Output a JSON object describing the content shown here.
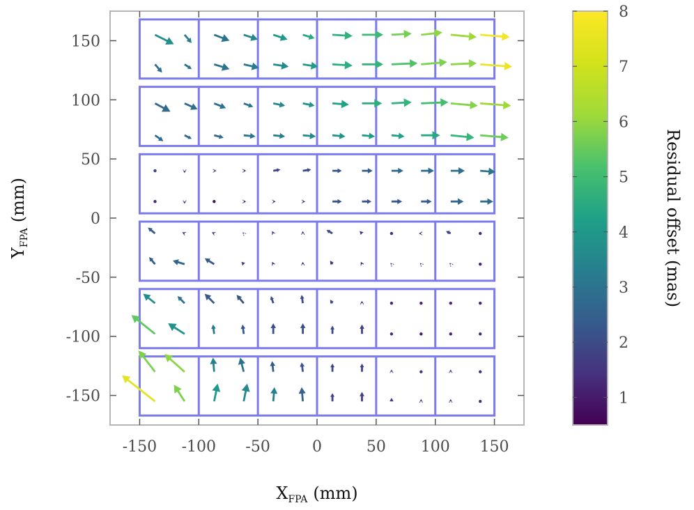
{
  "chart_data": {
    "type": "quiver",
    "title": "",
    "xlabel": {
      "main": "X",
      "sub": "FPA",
      "unit": "(mm)"
    },
    "ylabel": {
      "main": "Y",
      "sub": "FPA",
      "unit": "(mm)"
    },
    "xlim": [
      -175,
      175
    ],
    "ylim": [
      -175,
      175
    ],
    "xticks": [
      -150,
      -100,
      -50,
      0,
      50,
      100,
      150
    ],
    "yticks": [
      -150,
      -100,
      -50,
      0,
      50,
      100,
      150
    ],
    "xtick_labels": [
      "-150",
      "-100",
      "-50",
      "0",
      "50",
      "100",
      "150"
    ],
    "ytick_labels": [
      "-150",
      "-100",
      "-50",
      "0",
      "50",
      "100",
      "150"
    ],
    "colorbar": {
      "label": "Residual offset (mas)",
      "min": 0.5,
      "max": 8,
      "ticks": [
        1,
        2,
        3,
        4,
        5,
        6,
        7,
        8
      ],
      "tick_labels": [
        "1",
        "2",
        "3",
        "4",
        "5",
        "6",
        "7",
        "8"
      ],
      "colormap": "viridis"
    },
    "ccd_chips": [
      {
        "xmin": -150,
        "xmax": 150,
        "ymin": 118,
        "ymax": 168
      },
      {
        "xmin": -150,
        "xmax": 150,
        "ymin": 61,
        "ymax": 111
      },
      {
        "xmin": -150,
        "xmax": 150,
        "ymin": 4,
        "ymax": 54
      },
      {
        "xmin": -150,
        "xmax": 150,
        "ymin": -53,
        "ymax": -3
      },
      {
        "xmin": -150,
        "xmax": 150,
        "ymin": -110,
        "ymax": -60
      },
      {
        "xmin": -150,
        "xmax": 150,
        "ymin": -167,
        "ymax": -117
      }
    ],
    "chip_column_dividers": [
      -100,
      -50,
      0,
      50,
      100
    ],
    "grid_x": [
      -137,
      -112,
      -87,
      -62,
      -37,
      -12,
      13,
      38,
      63,
      88,
      113,
      138
    ],
    "grid_y": [
      155,
      130,
      97,
      70,
      40,
      14,
      -13,
      -39,
      -72,
      -98,
      -130,
      -155
    ],
    "vectors_dx": [
      [
        16,
        6,
        13,
        12,
        12,
        10,
        17,
        18,
        17,
        18,
        22,
        25
      ],
      [
        6,
        6,
        13,
        13,
        13,
        13,
        17,
        18,
        22,
        22,
        22,
        27
      ],
      [
        13,
        11,
        10,
        8,
        10,
        10,
        14,
        17,
        17,
        23,
        23,
        26
      ],
      [
        7,
        6,
        8,
        10,
        10,
        11,
        11,
        11,
        11,
        16,
        20,
        24
      ],
      [
        0,
        0,
        2,
        2,
        6,
        7,
        8,
        9,
        10,
        11,
        12,
        13
      ],
      [
        0,
        0,
        0,
        2,
        2,
        2,
        8,
        8,
        9,
        9,
        11,
        11
      ],
      [
        -6,
        -2,
        -2,
        -1,
        -1,
        0,
        -5,
        -2,
        -1,
        -2,
        -4,
        0
      ],
      [
        -5,
        -10,
        -8,
        -2,
        -1,
        0,
        -2,
        -1,
        -1,
        -1,
        -1,
        0
      ],
      [
        -10,
        -6,
        -8,
        -6,
        -2,
        -1,
        -2,
        0,
        0,
        0,
        0,
        0
      ],
      [
        -20,
        -14,
        -1,
        -1,
        0,
        0,
        0,
        0,
        0,
        0,
        0,
        0
      ],
      [
        -14,
        -17,
        -1,
        -3,
        -1,
        -1,
        0,
        0,
        0,
        0,
        0,
        0
      ],
      [
        -28,
        -9,
        3,
        3,
        1,
        -1,
        0,
        0,
        0,
        0,
        0,
        0
      ]
    ],
    "vectors_dy": [
      [
        -8,
        -7,
        -5,
        -4,
        -4,
        -3,
        -1,
        0,
        1,
        2,
        -2,
        -2
      ],
      [
        -7,
        -4,
        -4,
        -3,
        -2,
        -2,
        -1,
        0,
        1,
        2,
        1,
        -2
      ],
      [
        -7,
        -5,
        -4,
        -3,
        -2,
        -2,
        -1,
        0,
        1,
        1,
        -2,
        -2
      ],
      [
        -5,
        -3,
        -2,
        -1,
        -1,
        -1,
        -1,
        -1,
        -1,
        0,
        -2,
        -2
      ],
      [
        0,
        -2,
        0,
        0,
        1,
        1,
        0,
        0,
        0,
        0,
        0,
        -1
      ],
      [
        0,
        -2,
        0,
        0,
        0,
        0,
        0,
        0,
        0,
        0,
        0,
        0
      ],
      [
        5,
        1,
        1,
        1,
        2,
        2,
        3,
        2,
        0,
        0,
        2,
        1
      ],
      [
        6,
        3,
        5,
        2,
        2,
        2,
        3,
        2,
        1,
        1,
        1,
        1
      ],
      [
        8,
        6,
        8,
        7,
        6,
        7,
        3,
        2,
        1,
        0,
        0,
        1
      ],
      [
        16,
        9,
        8,
        8,
        9,
        9,
        7,
        8,
        1,
        0,
        1,
        1
      ],
      [
        18,
        15,
        12,
        12,
        9,
        8,
        7,
        7,
        2,
        1,
        2,
        1
      ],
      [
        22,
        14,
        15,
        15,
        12,
        12,
        7,
        8,
        3,
        2,
        2,
        1
      ]
    ],
    "vectors_mag": [
      [
        4.2,
        3.6,
        3.4,
        4.0,
        4.5,
        5.0,
        5.3,
        5.6,
        6.4,
        6.7,
        6.9,
        7.9
      ],
      [
        3.2,
        3.3,
        3.4,
        3.6,
        4.1,
        4.6,
        5.2,
        5.4,
        5.9,
        6.5,
        6.7,
        7.8
      ],
      [
        3.1,
        3.2,
        3.3,
        3.4,
        4.0,
        4.4,
        4.8,
        5.2,
        5.4,
        5.7,
        6.6,
        6.9
      ],
      [
        3.0,
        3.0,
        3.1,
        3.4,
        3.7,
        4.1,
        4.4,
        4.6,
        4.7,
        5.0,
        5.5,
        6.3
      ],
      [
        2.0,
        2.1,
        1.7,
        1.7,
        2.0,
        2.2,
        2.5,
        2.6,
        3.0,
        3.0,
        3.2,
        3.4
      ],
      [
        1.3,
        1.6,
        0.8,
        1.3,
        1.4,
        1.4,
        2.4,
        2.5,
        2.6,
        2.7,
        3.0,
        3.1
      ],
      [
        2.6,
        1.6,
        1.6,
        1.6,
        1.6,
        1.4,
        2.2,
        1.5,
        1.5,
        1.5,
        2.0,
        1.4
      ],
      [
        2.7,
        2.9,
        2.6,
        1.7,
        1.6,
        1.4,
        1.6,
        1.4,
        1.3,
        1.3,
        1.3,
        1.3
      ],
      [
        4.2,
        3.4,
        2.6,
        2.4,
        2.3,
        2.2,
        2.1,
        1.4,
        1.3,
        1.2,
        1.3,
        1.3
      ],
      [
        6.1,
        4.3,
        3.5,
        2.6,
        2.3,
        2.3,
        2.1,
        2.0,
        1.4,
        1.0,
        1.2,
        1.4
      ],
      [
        6.5,
        6.7,
        3.8,
        3.4,
        2.6,
        2.5,
        2.0,
        2.0,
        1.8,
        1.7,
        1.6,
        1.6
      ],
      [
        7.7,
        6.5,
        4.5,
        4.0,
        3.8,
        2.8,
        2.0,
        1.9,
        1.7,
        1.6,
        1.5,
        1.6
      ]
    ]
  }
}
